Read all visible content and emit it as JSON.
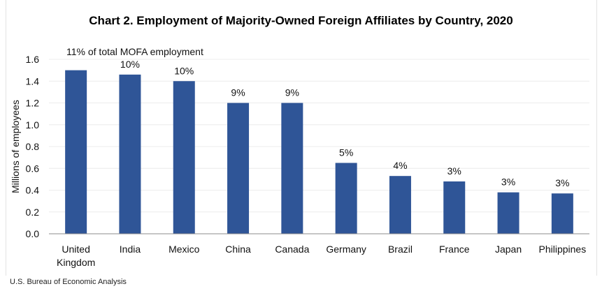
{
  "chart_data": {
    "type": "bar",
    "title": "Chart 2. Employment of Majority-Owned Foreign Affiliates by Country, 2020",
    "xlabel": "",
    "ylabel": "Millions of employees",
    "ylim": [
      0,
      1.6
    ],
    "yticks": [
      "0.0",
      "0.2",
      "0.4",
      "0.6",
      "0.8",
      "1.0",
      "1.2",
      "1.4",
      "1.6"
    ],
    "grid": true,
    "categories": [
      "United Kingdom",
      "India",
      "Mexico",
      "China",
      "Canada",
      "Germany",
      "Brazil",
      "France",
      "Japan",
      "Philippines"
    ],
    "category_lines": [
      [
        "United",
        "Kingdom"
      ],
      [
        "India"
      ],
      [
        "Mexico"
      ],
      [
        "China"
      ],
      [
        "Canada"
      ],
      [
        "Germany"
      ],
      [
        "Brazil"
      ],
      [
        "France"
      ],
      [
        "Japan"
      ],
      [
        "Philippines"
      ]
    ],
    "values": [
      1.5,
      1.46,
      1.4,
      1.2,
      1.2,
      0.65,
      0.53,
      0.48,
      0.38,
      0.37
    ],
    "data_labels": [
      "11% of total MOFA employment",
      "10%",
      "10%",
      "9%",
      "9%",
      "5%",
      "4%",
      "3%",
      "3%",
      "3%"
    ],
    "bar_color": "#2f5597"
  },
  "source": "U.S. Bureau of Economic Analysis"
}
